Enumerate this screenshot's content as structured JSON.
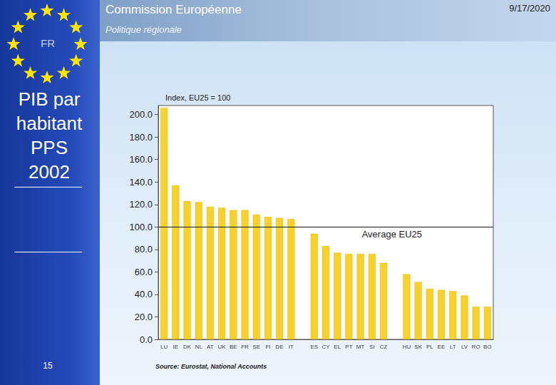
{
  "header": {
    "title": "Commission Européenne",
    "subtitle": "Politique régionale",
    "date": "9/17/2020"
  },
  "sidebar": {
    "country": "FR",
    "title_lines": [
      "PIB par",
      "habitant",
      "PPS",
      "2002"
    ],
    "page": "15"
  },
  "chart_data": {
    "type": "bar",
    "y_label": "Index, EU25 = 100",
    "source": "Source: Eurostat, National Accounts",
    "categories": [
      "LU",
      "IE",
      "DK",
      "NL",
      "AT",
      "UK",
      "BE",
      "FR",
      "SE",
      "FI",
      "DE",
      "IT",
      null,
      "ES",
      "CY",
      "EL",
      "PT",
      "MT",
      "SI",
      "CZ",
      null,
      "HU",
      "SK",
      "PL",
      "EE",
      "LT",
      "LV",
      "RO",
      "BG"
    ],
    "values": [
      206,
      137,
      123,
      122,
      118,
      117,
      115,
      115,
      111,
      109,
      108,
      107,
      null,
      94,
      83,
      77,
      76,
      76,
      76,
      68,
      null,
      58,
      51,
      45,
      44,
      43,
      39,
      29,
      29
    ],
    "color": "#f8d12b",
    "average": {
      "value": 100,
      "label": "Average EU25"
    },
    "ylim": [
      0,
      208
    ],
    "yticks": [
      {
        "value": 0,
        "label": "0.0"
      },
      {
        "value": 20,
        "label": "20.0"
      },
      {
        "value": 40,
        "label": "40.0"
      },
      {
        "value": 60,
        "label": "60.0"
      },
      {
        "value": 80,
        "label": "80.0"
      },
      {
        "value": 100,
        "label": "100.0"
      },
      {
        "value": 120,
        "label": "120.0"
      },
      {
        "value": 140,
        "label": "140.0"
      },
      {
        "value": 160,
        "label": "160.0"
      },
      {
        "value": 180,
        "label": "180.0"
      },
      {
        "value": 200,
        "label": "200.0"
      }
    ],
    "grid": false
  }
}
